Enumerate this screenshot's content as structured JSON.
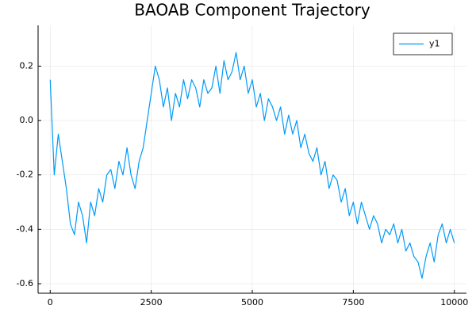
{
  "chart_data": {
    "type": "line",
    "title": "BAOAB Component Trajectory",
    "x": [
      0,
      100,
      200,
      300,
      400,
      500,
      600,
      700,
      800,
      900,
      1000,
      1100,
      1200,
      1300,
      1400,
      1500,
      1600,
      1700,
      1800,
      1900,
      2000,
      2100,
      2200,
      2300,
      2400,
      2500,
      2600,
      2700,
      2800,
      2900,
      3000,
      3100,
      3200,
      3300,
      3400,
      3500,
      3600,
      3700,
      3800,
      3900,
      4000,
      4100,
      4200,
      4300,
      4400,
      4500,
      4600,
      4700,
      4800,
      4900,
      5000,
      5100,
      5200,
      5300,
      5400,
      5500,
      5600,
      5700,
      5800,
      5900,
      6000,
      6100,
      6200,
      6300,
      6400,
      6500,
      6600,
      6700,
      6800,
      6900,
      7000,
      7100,
      7200,
      7300,
      7400,
      7500,
      7600,
      7700,
      7800,
      7900,
      8000,
      8100,
      8200,
      8300,
      8400,
      8500,
      8600,
      8700,
      8800,
      8900,
      9000,
      9100,
      9200,
      9300,
      9400,
      9500,
      9600,
      9700,
      9800,
      9900,
      10000
    ],
    "series": [
      {
        "name": "y1",
        "color": "#009af9",
        "values": [
          0.15,
          -0.2,
          -0.05,
          -0.15,
          -0.25,
          -0.38,
          -0.42,
          -0.3,
          -0.35,
          -0.45,
          -0.3,
          -0.35,
          -0.25,
          -0.3,
          -0.2,
          -0.18,
          -0.25,
          -0.15,
          -0.2,
          -0.1,
          -0.2,
          -0.25,
          -0.15,
          -0.1,
          0.0,
          0.1,
          0.2,
          0.15,
          0.05,
          0.12,
          0.0,
          0.1,
          0.05,
          0.15,
          0.08,
          0.15,
          0.12,
          0.05,
          0.15,
          0.1,
          0.12,
          0.2,
          0.1,
          0.22,
          0.15,
          0.18,
          0.25,
          0.15,
          0.2,
          0.1,
          0.15,
          0.05,
          0.1,
          0.0,
          0.08,
          0.05,
          0.0,
          0.05,
          -0.05,
          0.02,
          -0.05,
          0.0,
          -0.1,
          -0.05,
          -0.12,
          -0.15,
          -0.1,
          -0.2,
          -0.15,
          -0.25,
          -0.2,
          -0.22,
          -0.3,
          -0.25,
          -0.35,
          -0.3,
          -0.38,
          -0.3,
          -0.35,
          -0.4,
          -0.35,
          -0.38,
          -0.45,
          -0.4,
          -0.42,
          -0.38,
          -0.45,
          -0.4,
          -0.48,
          -0.45,
          -0.5,
          -0.52,
          -0.58,
          -0.5,
          -0.45,
          -0.52,
          -0.42,
          -0.38,
          -0.45,
          -0.4,
          -0.45
        ]
      }
    ],
    "xlim": [
      -300,
      10300
    ],
    "xticks": [
      0,
      2500,
      5000,
      7500,
      10000
    ],
    "ylim": [
      -0.635,
      0.35
    ],
    "yticks": [
      -0.6,
      -0.4,
      -0.2,
      {
        "value": 0,
        "label": "0.0"
      },
      0.2
    ],
    "grid": true,
    "legend": "top-right"
  }
}
